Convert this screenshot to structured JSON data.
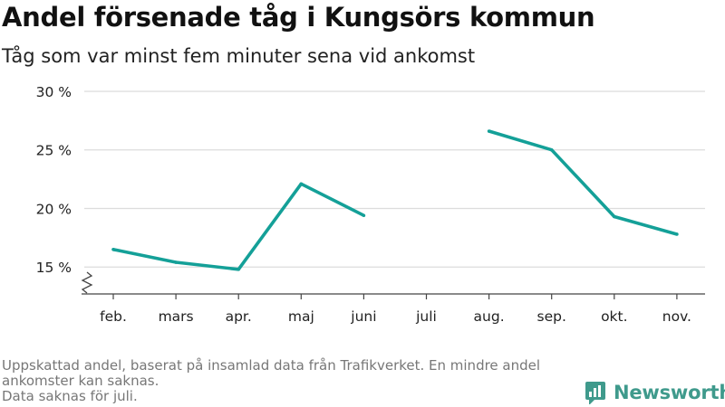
{
  "header": {
    "title": "Andel försenade tåg i Kungsörs kommun",
    "subtitle": "Tåg som var minst fem minuter sena vid ankomst"
  },
  "footer": {
    "note_line1": "Uppskattad andel, baserat på insamlad data från Trafikverket. En mindre andel ankomster kan saknas.",
    "note_line2": "Data saknas för juli.",
    "brand": "Newsworthy"
  },
  "colors": {
    "line": "#14a098",
    "grid": "#dcdcdc",
    "axis": "#444444",
    "brand": "#3f9a8c"
  },
  "chart_data": {
    "type": "line",
    "categories": [
      "feb.",
      "mars",
      "apr.",
      "maj",
      "juni",
      "juli",
      "aug.",
      "sep.",
      "okt.",
      "nov."
    ],
    "series": [
      {
        "values": [
          16.5,
          15.4,
          14.8,
          22.1,
          19.4,
          null,
          26.6,
          25.0,
          19.3,
          17.8
        ]
      }
    ],
    "yticks": [
      15,
      20,
      25,
      30
    ],
    "ytick_labels": [
      "15 %",
      "20 %",
      "25 %",
      "30 %"
    ],
    "ylim": [
      12.7,
      30
    ],
    "axis_break": true,
    "grid": true
  }
}
